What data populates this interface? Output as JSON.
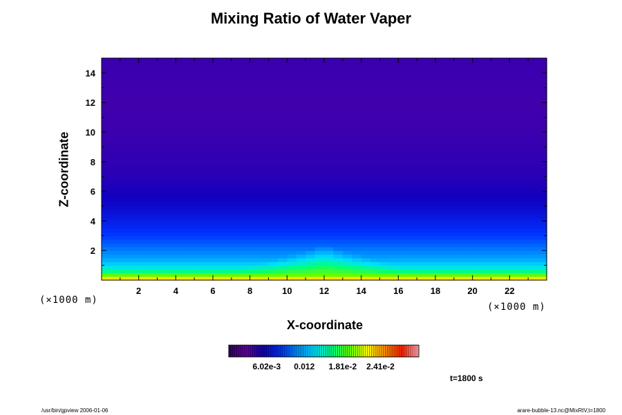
{
  "chart_data": {
    "type": "heatmap",
    "title": "Mixing Ratio of Water Vaper",
    "xlabel": "X-coordinate",
    "ylabel": "Z-coordinate",
    "x_unit_note": "(×1000 m)",
    "y_unit_note": "(×1000 m)",
    "x_ticks": [
      2,
      4,
      6,
      8,
      10,
      12,
      14,
      16,
      18,
      20,
      22
    ],
    "y_ticks": [
      2,
      4,
      6,
      8,
      10,
      12,
      14
    ],
    "xlim": [
      0,
      24
    ],
    "ylim": [
      0,
      15
    ],
    "colorbar": {
      "tick_labels": [
        "6.02e-3",
        "0.012",
        "1.81e-2",
        "2.41e-2"
      ],
      "tick_values": [
        0.00602,
        0.012,
        0.0181,
        0.0241
      ],
      "range": [
        0,
        0.0302
      ]
    },
    "z_profile": {
      "z": [
        0.1,
        0.5,
        1.0,
        1.5,
        2.0,
        2.5,
        3.0,
        4.0,
        5.0,
        6.0,
        7.0,
        8.0,
        9.0,
        10.0,
        12.0,
        15.0
      ],
      "q": [
        0.023,
        0.017,
        0.0135,
        0.0115,
        0.0105,
        0.0095,
        0.0085,
        0.0072,
        0.006,
        0.0052,
        0.0047,
        0.0044,
        0.0042,
        0.004,
        0.0038,
        0.0041
      ]
    },
    "bubble": {
      "center_x": 12,
      "half_width": 6.5,
      "peak_height": 2.4,
      "peak_value": 0.0195
    }
  },
  "annotations": {
    "time": "t=1800 s",
    "footer_left": "/usr/bin/gpview 2006-01-06",
    "footer_right": "arare-bubble-13.nc@MixRtV,t=1800"
  },
  "colors": {
    "colormap": [
      "#300060",
      "#6000a0",
      "#1000c0",
      "#0030ff",
      "#0090ff",
      "#00e0ff",
      "#00ff80",
      "#60ff00",
      "#ffff00",
      "#ff9000",
      "#ff2000",
      "#ffb0c0"
    ]
  }
}
